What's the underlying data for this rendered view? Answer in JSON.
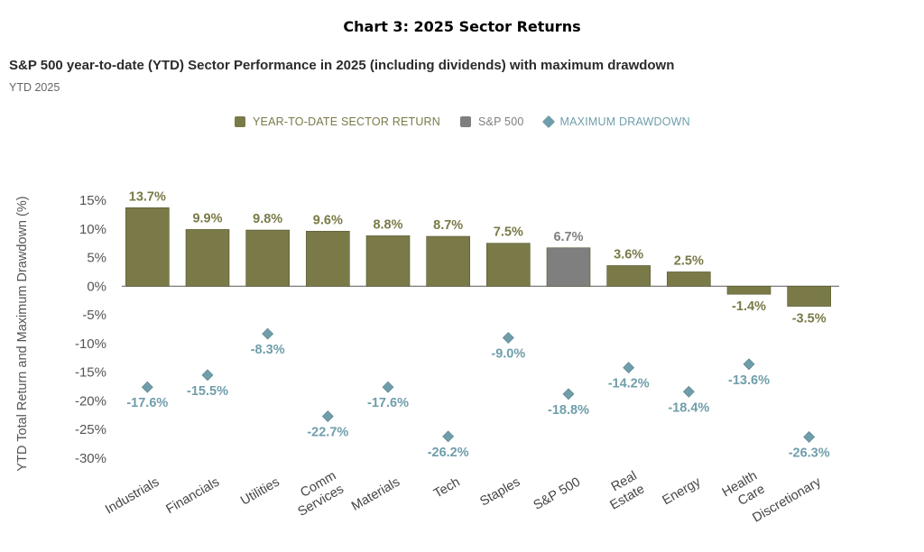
{
  "page": {
    "title": "Chart 3: 2025 Sector Returns"
  },
  "chart_data": {
    "type": "bar",
    "title": "S&P 500 year-to-date (YTD) Sector Performance in 2025 (including dividends) with maximum drawdown",
    "subtitle": "YTD 2025",
    "ylabel": "YTD Total Return and Maximum Drawdown (%)",
    "xlabel": "",
    "ylim": [
      -30,
      15
    ],
    "yticks": [
      15,
      10,
      5,
      0,
      -5,
      -10,
      -15,
      -20,
      -25,
      -30
    ],
    "ytick_labels": [
      "15%",
      "10%",
      "5%",
      "0%",
      "-5%",
      "-10%",
      "-15%",
      "-20%",
      "-25%",
      "-30%"
    ],
    "grid": false,
    "legend_position": "top-center",
    "categories": [
      [
        "Industrials"
      ],
      [
        "Financials"
      ],
      [
        "Utilities"
      ],
      [
        "Comm",
        "Services"
      ],
      [
        "Materials"
      ],
      [
        "Tech"
      ],
      [
        "Staples"
      ],
      [
        "S&P 500"
      ],
      [
        "Real",
        "Estate"
      ],
      [
        "Energy"
      ],
      [
        "Health",
        "Care"
      ],
      [
        "Discretionary"
      ]
    ],
    "series": [
      {
        "name": "YEAR-TO-DATE SECTOR RETURN",
        "type": "bar",
        "values": [
          13.7,
          9.9,
          9.8,
          9.6,
          8.8,
          8.7,
          7.5,
          6.7,
          3.6,
          2.5,
          -1.4,
          -3.5
        ],
        "labels": [
          "13.7%",
          "9.9%",
          "9.8%",
          "9.6%",
          "8.8%",
          "8.7%",
          "7.5%",
          "6.7%",
          "3.6%",
          "2.5%",
          "-1.4%",
          "-3.5%"
        ],
        "color": "#7a7a48",
        "highlight_index": 7,
        "highlight_color": "#7f7f80"
      },
      {
        "name": "MAXIMUM DRAWDOWN",
        "type": "scatter",
        "marker": "diamond",
        "values": [
          -17.6,
          -15.5,
          -8.3,
          -22.7,
          -17.6,
          -26.2,
          -9.0,
          -18.8,
          -14.2,
          -18.4,
          -13.6,
          -26.3
        ],
        "labels": [
          "-17.6%",
          "-15.5%",
          "-8.3%",
          "-22.7%",
          "-17.6%",
          "-26.2%",
          "-9.0%",
          "-18.8%",
          "-14.2%",
          "-18.4%",
          "-13.6%",
          "-26.3%"
        ],
        "color": "#6f9eaa"
      }
    ],
    "legend": [
      {
        "label": "YEAR-TO-DATE SECTOR RETURN",
        "color": "#7a7a48",
        "shape": "square"
      },
      {
        "label": "S&P 500",
        "color": "#7f7f80",
        "shape": "square"
      },
      {
        "label": "MAXIMUM DRAWDOWN",
        "color": "#6f9eaa",
        "shape": "diamond"
      }
    ]
  }
}
